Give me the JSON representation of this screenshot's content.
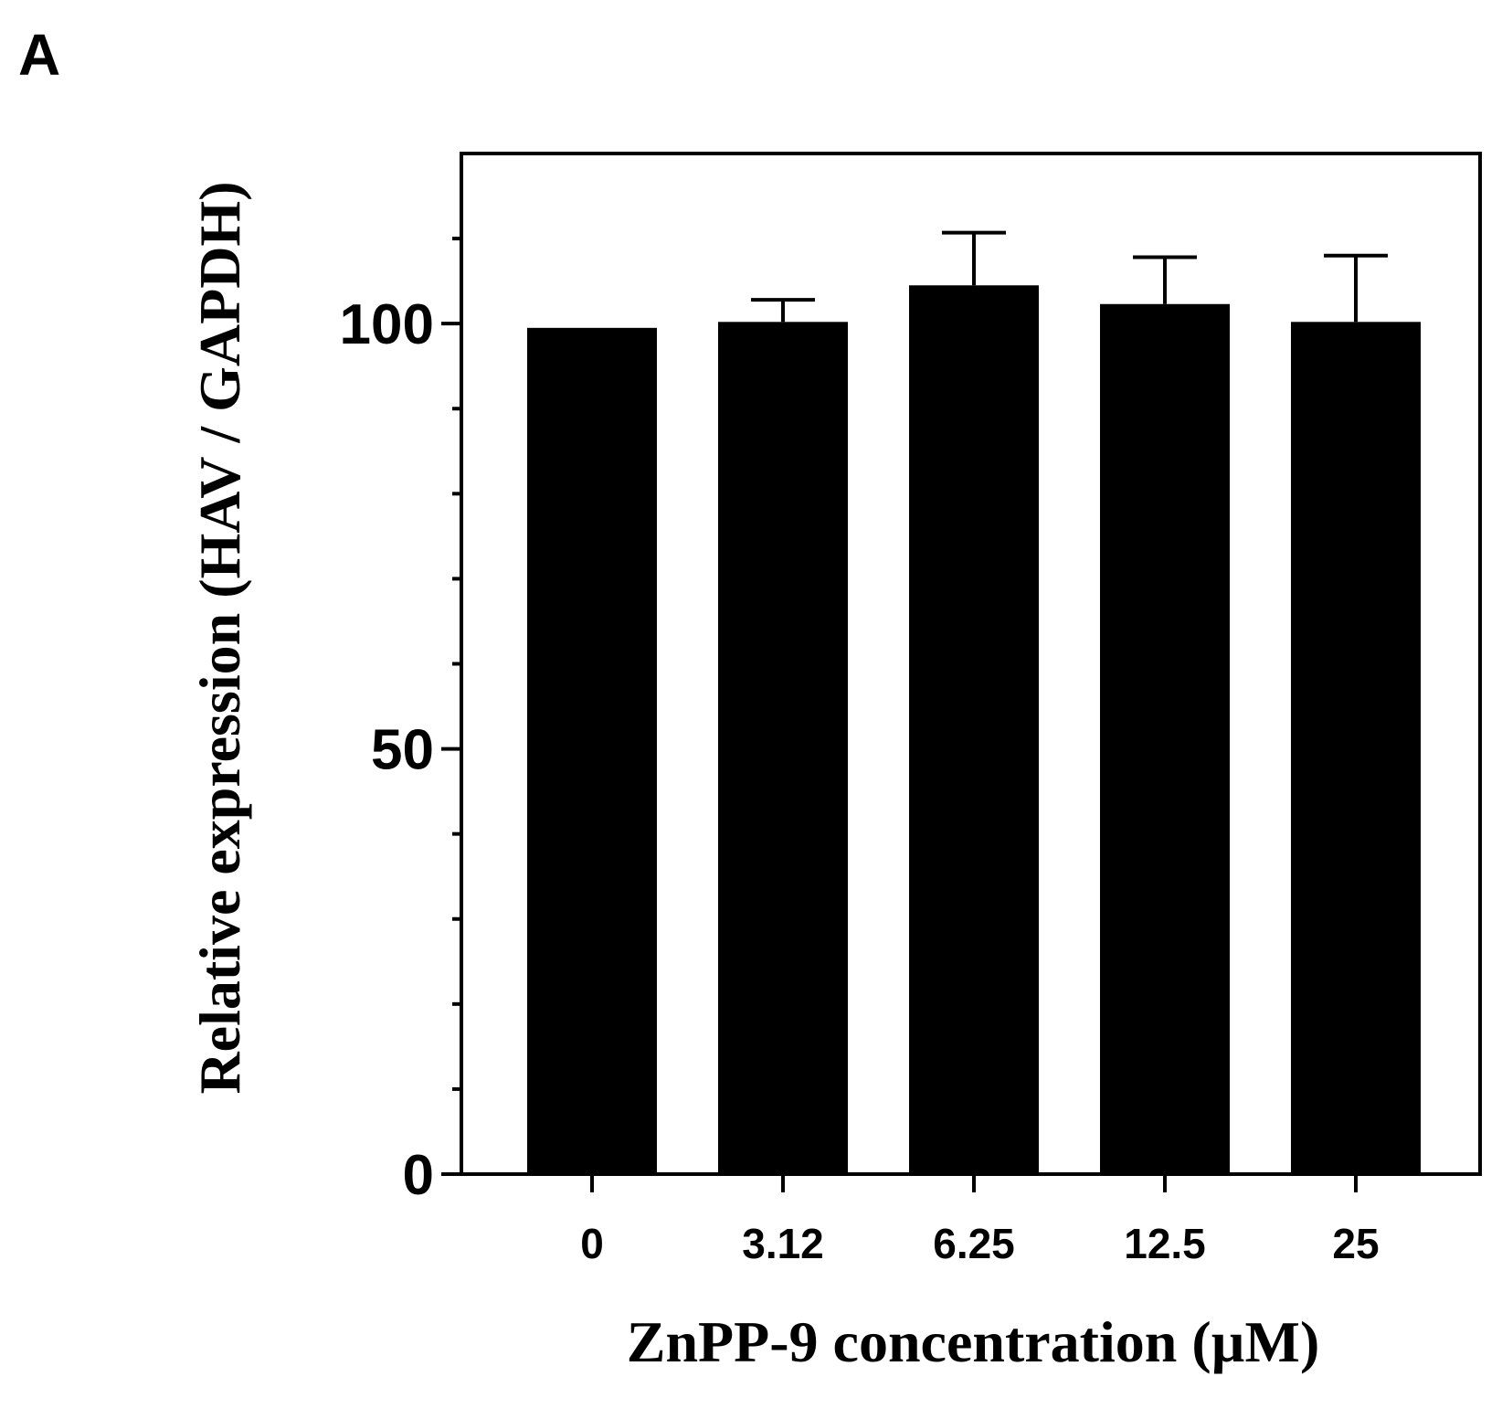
{
  "panel_label": "A",
  "chart_data": {
    "type": "bar",
    "title": "",
    "categories": [
      "0",
      "3.12",
      "6.25",
      "12.5",
      "25"
    ],
    "values": [
      99.5,
      100.2,
      104.5,
      102.3,
      100.2
    ],
    "errors": [
      0,
      2.6,
      6.2,
      5.5,
      7.8
    ],
    "xlabel": "ZnPP-9 concentration (µM)",
    "ylabel": "Relative expression (HAV / GAPDH)",
    "ylim": [
      0,
      120
    ],
    "yticks_major": [
      0,
      50,
      100
    ],
    "yticks_major_labels": [
      "0",
      "50",
      "100"
    ],
    "yticks_minor": [
      10,
      20,
      30,
      40,
      60,
      70,
      80,
      90,
      110
    ],
    "bar_color": "#000000",
    "grid": false,
    "legend": "none"
  }
}
